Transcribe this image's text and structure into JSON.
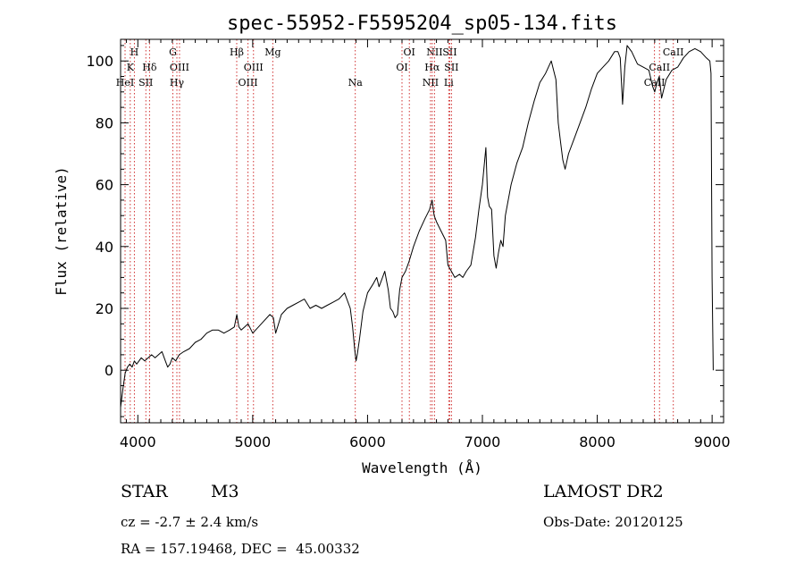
{
  "chart_data": {
    "type": "line",
    "title": "spec-55952-F5595204_sp05-134.fits",
    "xlabel": "Wavelength (Å)",
    "ylabel": "Flux (relative)",
    "xlim": [
      3850,
      9100
    ],
    "ylim": [
      -17,
      107
    ],
    "xticks": [
      4000,
      5000,
      6000,
      7000,
      8000,
      9000
    ],
    "yticks": [
      0,
      20,
      40,
      60,
      80,
      100
    ],
    "grid": false,
    "series": [
      {
        "x": [
          3850,
          3870,
          3890,
          3910,
          3930,
          3950,
          3970,
          3990,
          4010,
          4030,
          4060,
          4090,
          4120,
          4150,
          4180,
          4210,
          4240,
          4260,
          4280,
          4300,
          4330,
          4360,
          4400,
          4450,
          4500,
          4550,
          4600,
          4650,
          4700,
          4750,
          4800,
          4840,
          4862,
          4880,
          4900,
          4930,
          4960,
          5000,
          5050,
          5100,
          5150,
          5180,
          5200,
          5250,
          5300,
          5350,
          5400,
          5450,
          5500,
          5550,
          5600,
          5650,
          5700,
          5750,
          5800,
          5850,
          5870,
          5890,
          5900,
          5910,
          5930,
          5960,
          6000,
          6050,
          6080,
          6100,
          6120,
          6150,
          6180,
          6200,
          6220,
          6240,
          6260,
          6280,
          6300,
          6330,
          6360,
          6400,
          6450,
          6500,
          6540,
          6562,
          6580,
          6600,
          6640,
          6680,
          6700,
          6730,
          6760,
          6800,
          6830,
          6860,
          6900,
          6940,
          6970,
          7000,
          7030,
          7045,
          7060,
          7080,
          7100,
          7120,
          7140,
          7160,
          7180,
          7200,
          7250,
          7300,
          7350,
          7400,
          7450,
          7500,
          7550,
          7600,
          7620,
          7640,
          7660,
          7680,
          7700,
          7720,
          7750,
          7800,
          7850,
          7900,
          7950,
          8000,
          8050,
          8100,
          8150,
          8180,
          8200,
          8220,
          8240,
          8260,
          8300,
          8350,
          8400,
          8450,
          8480,
          8500,
          8520,
          8540,
          8560,
          8600,
          8650,
          8700,
          8750,
          8800,
          8850,
          8900,
          8950,
          8980,
          8990,
          9000,
          9010
        ],
        "y": [
          -12,
          -6,
          -1,
          1,
          2,
          1,
          3,
          2,
          3,
          4,
          3,
          4,
          5,
          4,
          5,
          6,
          3,
          1,
          2,
          4,
          3,
          5,
          6,
          7,
          9,
          10,
          12,
          13,
          13,
          12,
          13,
          14,
          18,
          14,
          13,
          14,
          15,
          12,
          14,
          16,
          18,
          17,
          12,
          18,
          20,
          21,
          22,
          23,
          20,
          21,
          20,
          21,
          22,
          23,
          25,
          20,
          14,
          6,
          3,
          5,
          10,
          19,
          25,
          28,
          30,
          27,
          29,
          32,
          26,
          20,
          19,
          17,
          18,
          26,
          30,
          32,
          35,
          40,
          45,
          49,
          52,
          55,
          50,
          48,
          45,
          42,
          34,
          32,
          30,
          31,
          30,
          32,
          34,
          43,
          52,
          60,
          72,
          56,
          53,
          52,
          37,
          33,
          38,
          42,
          40,
          50,
          60,
          67,
          72,
          80,
          87,
          93,
          96,
          100,
          97,
          94,
          80,
          74,
          68,
          65,
          70,
          75,
          80,
          85,
          91,
          96,
          98,
          100,
          103,
          103,
          101,
          86,
          98,
          105,
          103,
          99,
          98,
          97,
          92,
          90,
          93,
          95,
          88,
          94,
          97,
          98,
          101,
          103,
          104,
          103,
          101,
          100,
          96,
          30,
          0
        ]
      }
    ],
    "line_labels": [
      {
        "x": 3970,
        "row": 1,
        "text": "H"
      },
      {
        "x": 3934,
        "row": 2,
        "text": "K"
      },
      {
        "x": 3889,
        "row": 3,
        "text": "HeI"
      },
      {
        "x": 4102,
        "row": 2,
        "text": "Hδ"
      },
      {
        "x": 4070,
        "row": 3,
        "text": "SII"
      },
      {
        "x": 4305,
        "row": 1,
        "text": "G"
      },
      {
        "x": 4363,
        "row": 2,
        "text": "OIII"
      },
      {
        "x": 4340,
        "row": 3,
        "text": "Hγ"
      },
      {
        "x": 4861,
        "row": 1,
        "text": "Hβ"
      },
      {
        "x": 5007,
        "row": 2,
        "text": "OIII"
      },
      {
        "x": 4959,
        "row": 3,
        "text": "OIII"
      },
      {
        "x": 5175,
        "row": 1,
        "text": "Mg"
      },
      {
        "x": 5893,
        "row": 3,
        "text": "Na"
      },
      {
        "x": 6364,
        "row": 1,
        "text": "OI"
      },
      {
        "x": 6300,
        "row": 2,
        "text": "OI"
      },
      {
        "x": 6583,
        "row": 1,
        "text": "NII"
      },
      {
        "x": 6563,
        "row": 2,
        "text": "Hα"
      },
      {
        "x": 6548,
        "row": 3,
        "text": "NII"
      },
      {
        "x": 6716,
        "row": 1,
        "text": "SII"
      },
      {
        "x": 6731,
        "row": 2,
        "text": "SII"
      },
      {
        "x": 6707,
        "row": 3,
        "text": "Li"
      },
      {
        "x": 8662,
        "row": 1,
        "text": "CaII"
      },
      {
        "x": 8542,
        "row": 2,
        "text": "CaII"
      },
      {
        "x": 8498,
        "row": 3,
        "text": "CaII"
      }
    ]
  },
  "info": {
    "object_class": "STAR",
    "subclass": "M3",
    "survey": "LAMOST DR2",
    "redshift": "cz = -2.7 ± 2.4 km/s",
    "obs_date": "Obs-Date: 20120125",
    "coords": "RA = 157.19468, DEC =  45.00332"
  }
}
